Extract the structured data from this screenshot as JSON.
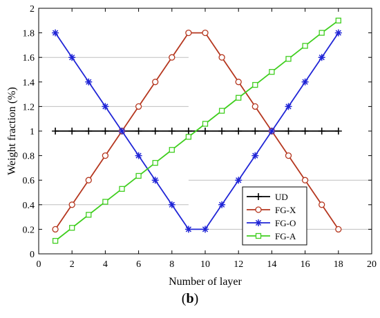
{
  "chart_data": {
    "type": "line",
    "xlabel": "Number of layer",
    "ylabel": "Weight fraction (%)",
    "xlim": [
      0,
      20
    ],
    "ylim": [
      0,
      2
    ],
    "xticks": [
      "0",
      "2",
      "4",
      "6",
      "8",
      "10",
      "12",
      "14",
      "16",
      "18",
      "20"
    ],
    "yticks": [
      "0",
      "0.2",
      "0.4",
      "0.6",
      "0.8",
      "1",
      "1.2",
      "1.4",
      "1.6",
      "1.8",
      "2"
    ],
    "grid": false,
    "legend_position": "bottom-right",
    "series": [
      {
        "name": "UD",
        "color": "#000000",
        "marker": "plus",
        "x": [
          1,
          2,
          3,
          4,
          5,
          6,
          7,
          8,
          9,
          10,
          11,
          12,
          13,
          14,
          15,
          16,
          17,
          18
        ],
        "y": [
          1,
          1,
          1,
          1,
          1,
          1,
          1,
          1,
          1,
          1,
          1,
          1,
          1,
          1,
          1,
          1,
          1,
          1
        ]
      },
      {
        "name": "FG-X",
        "color": "#b5361e",
        "marker": "circle",
        "x": [
          1,
          2,
          3,
          4,
          5,
          6,
          7,
          8,
          9,
          10,
          11,
          12,
          13,
          14,
          15,
          16,
          17,
          18
        ],
        "y": [
          0.2,
          0.4,
          0.6,
          0.8,
          1.0,
          1.2,
          1.4,
          1.6,
          1.8,
          1.8,
          1.6,
          1.4,
          1.2,
          1.0,
          0.8,
          0.6,
          0.4,
          0.2
        ]
      },
      {
        "name": "FG-O",
        "color": "#1f24d6",
        "marker": "asterisk",
        "x": [
          1,
          2,
          3,
          4,
          5,
          6,
          7,
          8,
          9,
          10,
          11,
          12,
          13,
          14,
          15,
          16,
          17,
          18
        ],
        "y": [
          1.8,
          1.6,
          1.4,
          1.2,
          1.0,
          0.8,
          0.6,
          0.4,
          0.2,
          0.2,
          0.4,
          0.6,
          0.8,
          1.0,
          1.2,
          1.4,
          1.6,
          1.8
        ]
      },
      {
        "name": "FG-A",
        "color": "#3fce1e",
        "marker": "square",
        "x": [
          1,
          2,
          3,
          4,
          5,
          6,
          7,
          8,
          9,
          10,
          11,
          12,
          13,
          14,
          15,
          16,
          17,
          18
        ],
        "y": [
          0.106,
          0.212,
          0.318,
          0.424,
          0.529,
          0.635,
          0.741,
          0.847,
          0.953,
          1.059,
          1.165,
          1.271,
          1.376,
          1.482,
          1.588,
          1.694,
          1.8,
          1.9
        ]
      }
    ]
  },
  "caption": {
    "open": "(",
    "letter": "b",
    "close": ")"
  }
}
